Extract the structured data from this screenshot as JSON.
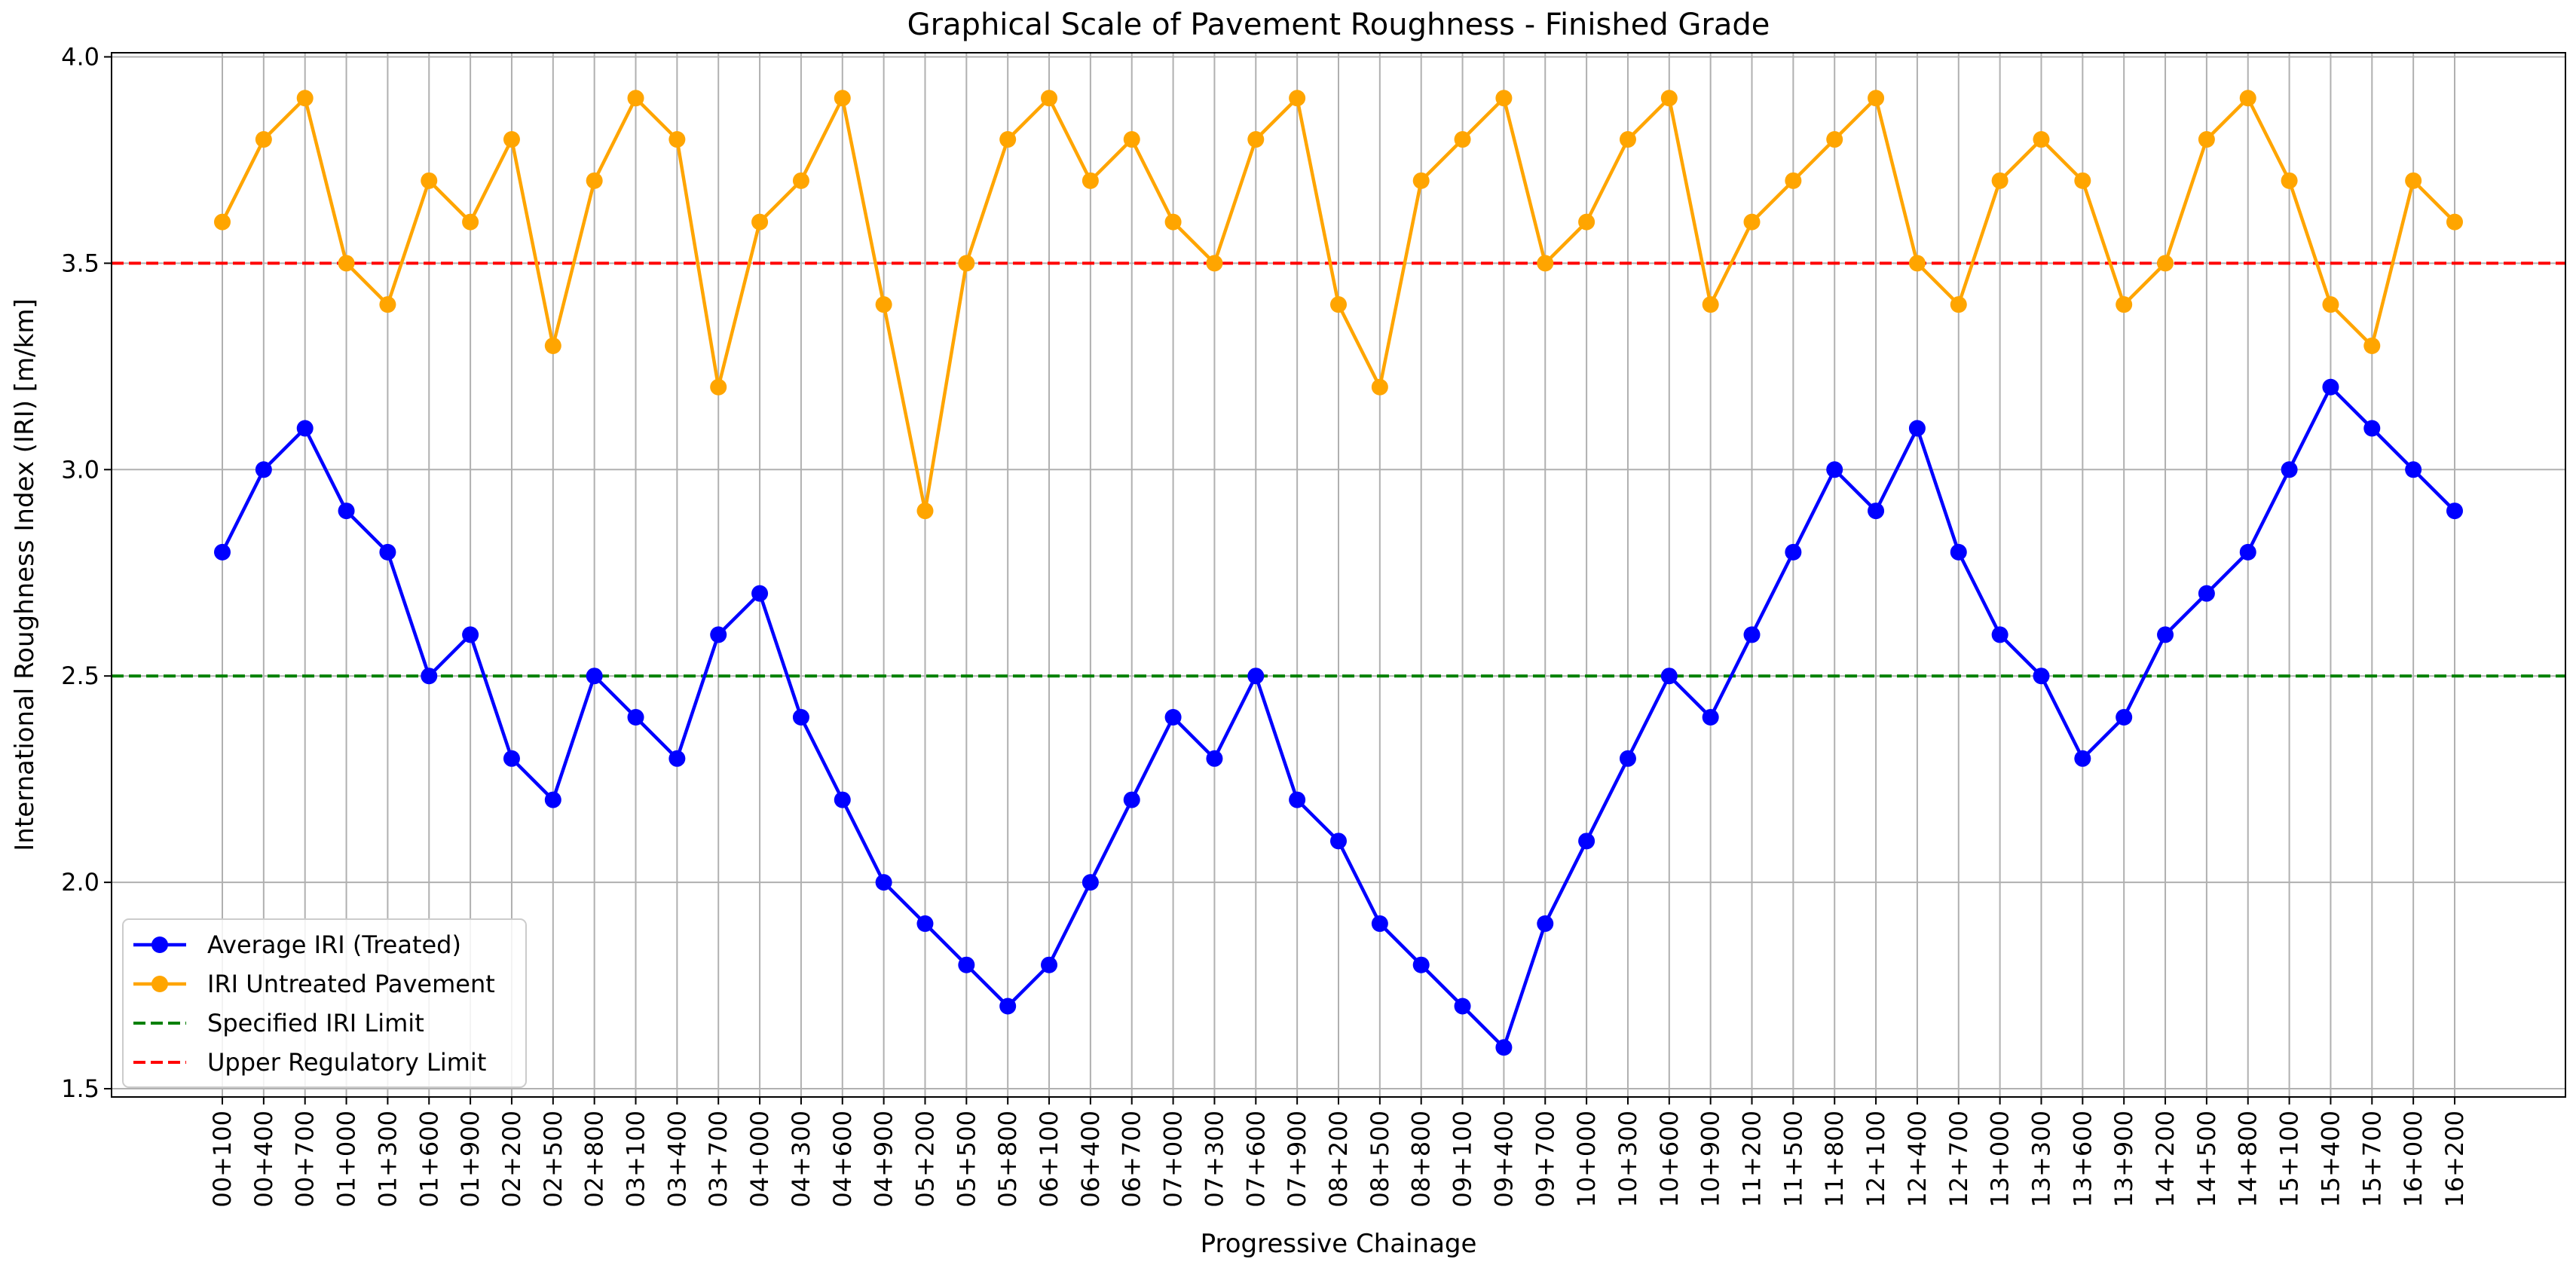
{
  "chart_data": {
    "type": "line",
    "title": "Graphical Scale of Pavement Roughness - Finished Grade",
    "xlabel": "Progressive Chainage",
    "ylabel": "International Roughness Index (IRI) [m/km]",
    "ylim": [
      1.48,
      4.01
    ],
    "yticks": [
      "1.5",
      "2.0",
      "2.5",
      "3.0",
      "3.5",
      "4.0"
    ],
    "grid": true,
    "legend_position": "lower-left",
    "categories": [
      "00+100",
      "00+400",
      "00+700",
      "01+000",
      "01+300",
      "01+600",
      "01+900",
      "02+200",
      "02+500",
      "02+800",
      "03+100",
      "03+400",
      "03+700",
      "04+000",
      "04+300",
      "04+600",
      "04+900",
      "05+200",
      "05+500",
      "05+800",
      "06+100",
      "06+400",
      "06+700",
      "07+000",
      "07+300",
      "07+600",
      "07+900",
      "08+200",
      "08+500",
      "08+800",
      "09+100",
      "09+400",
      "09+700",
      "10+000",
      "10+300",
      "10+600",
      "10+900",
      "11+200",
      "11+500",
      "11+800",
      "12+100",
      "12+400",
      "12+700",
      "13+000",
      "13+300",
      "13+600",
      "13+900",
      "14+200",
      "14+500",
      "14+800",
      "15+100",
      "15+400",
      "15+700",
      "16+000",
      "16+200"
    ],
    "series": [
      {
        "name": "Average IRI (Treated)",
        "color": "#0000ff",
        "values": [
          2.8,
          3.0,
          3.1,
          2.9,
          2.8,
          2.5,
          2.6,
          2.3,
          2.2,
          2.5,
          2.4,
          2.3,
          2.6,
          2.7,
          2.4,
          2.2,
          2.0,
          1.9,
          1.8,
          1.7,
          1.8,
          2.0,
          2.2,
          2.4,
          2.3,
          2.5,
          2.2,
          2.1,
          1.9,
          1.8,
          1.7,
          1.6,
          1.9,
          2.1,
          2.3,
          2.5,
          2.4,
          2.6,
          2.8,
          3.0,
          2.9,
          3.1,
          2.8,
          2.6,
          2.5,
          2.3,
          2.4,
          2.6,
          2.7,
          2.8,
          3.0,
          3.2,
          3.1,
          3.0,
          2.9
        ]
      },
      {
        "name": "IRI Untreated Pavement",
        "color": "#ffa500",
        "values": [
          3.6,
          3.8,
          3.9,
          3.5,
          3.4,
          3.7,
          3.6,
          3.8,
          3.3,
          3.7,
          3.9,
          3.8,
          3.2,
          3.6,
          3.7,
          3.9,
          3.4,
          2.9,
          3.5,
          3.8,
          3.9,
          3.7,
          3.8,
          3.6,
          3.5,
          3.8,
          3.9,
          3.4,
          3.2,
          3.7,
          3.8,
          3.9,
          3.5,
          3.6,
          3.8,
          3.9,
          3.4,
          3.6,
          3.7,
          3.8,
          3.9,
          3.5,
          3.4,
          3.7,
          3.8,
          3.7,
          3.4,
          3.5,
          3.8,
          3.9,
          3.7,
          3.4,
          3.3,
          3.7,
          3.6
        ]
      }
    ],
    "reference_lines": [
      {
        "name": "Specified IRI Limit",
        "value": 2.5,
        "color": "#008000",
        "style": "dashed"
      },
      {
        "name": "Upper Regulatory Limit",
        "value": 3.5,
        "color": "#ff0000",
        "style": "dashed"
      }
    ]
  }
}
